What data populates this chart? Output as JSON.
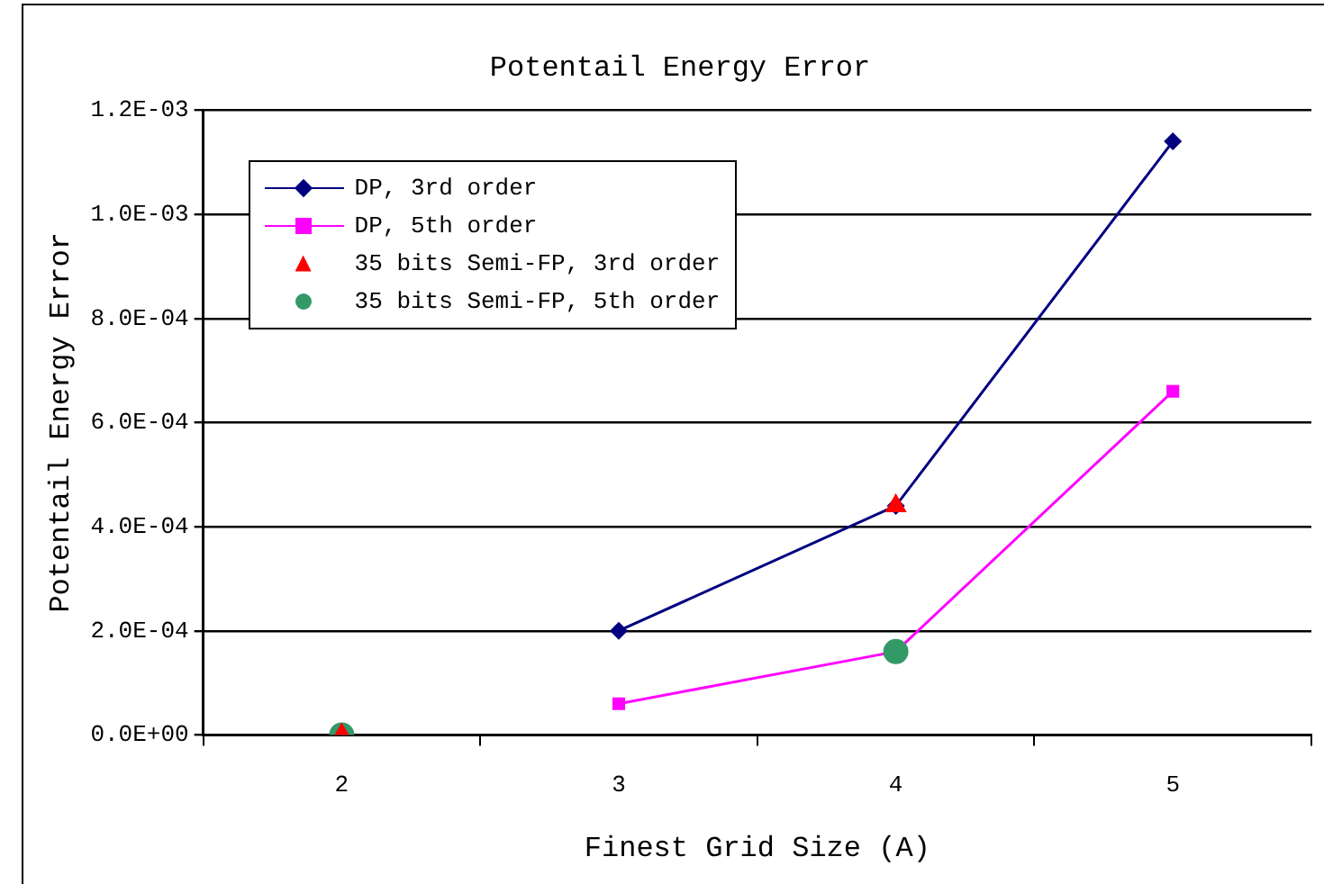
{
  "chart_data": {
    "type": "line",
    "title": "Potentail Energy Error",
    "xlabel": "Finest Grid Size (A)",
    "ylabel": "Potentail Energy Error",
    "categories": [
      "2",
      "3",
      "4",
      "5"
    ],
    "series": [
      {
        "name": "DP, 3rd order",
        "color": "#000080",
        "marker": "diamond",
        "values": [
          null,
          0.0002,
          0.00044,
          0.00114
        ]
      },
      {
        "name": "DP, 5th order",
        "color": "#ff00ff",
        "marker": "square",
        "values": [
          null,
          6e-05,
          0.00016,
          0.00066
        ]
      },
      {
        "name": "35 bits Semi-FP, 3rd order",
        "type": "scatter",
        "color": "#ff0000",
        "marker": "triangle",
        "values": [
          0,
          null,
          0.00044,
          null
        ]
      },
      {
        "name": "35 bits Semi-FP, 5th order",
        "type": "scatter",
        "color": "#339966",
        "marker": "circle",
        "values": [
          0,
          null,
          0.00016,
          null
        ]
      }
    ],
    "ylim": [
      0,
      0.0012
    ],
    "yticks": [
      {
        "value": 0,
        "label": "0.0E+00"
      },
      {
        "value": 0.0002,
        "label": "2.0E-04"
      },
      {
        "value": 0.0004,
        "label": "4.0E-04"
      },
      {
        "value": 0.0006,
        "label": "6.0E-04"
      },
      {
        "value": 0.0008,
        "label": "8.0E-04"
      },
      {
        "value": 0.001,
        "label": "1.0E-03"
      },
      {
        "value": 0.0012,
        "label": "1.2E-03"
      }
    ],
    "grid": "y",
    "legend": "top left",
    "line_style": "solid"
  }
}
